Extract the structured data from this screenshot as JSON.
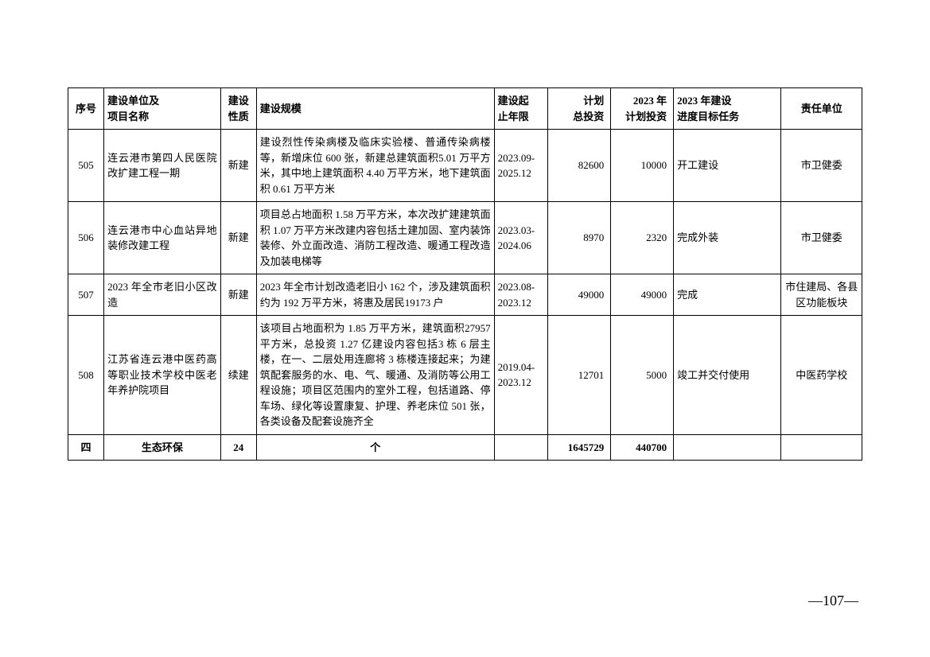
{
  "headers": {
    "seq": "序号",
    "unit": "建设单位及\n项目名称",
    "nature": "建设\n性质",
    "scale": "建设规模",
    "period": "建设起\n止年限",
    "invest": "计划\n总投资",
    "planinvest": "2023 年\n计划投资",
    "progress": "2023 年建设\n进度目标任务",
    "resp": "责任单位"
  },
  "rows": [
    {
      "seq": "505",
      "unit": "连云港市第四人民医院改扩建工程一期",
      "nature": "新建",
      "scale": "建设烈性传染病楼及临床实验楼、普通传染病楼等，新增床位 600 张，新建总建筑面积5.01 万平方米，其中地上建筑面积 4.40 万平方米，地下建筑面积 0.61 万平方米",
      "period": "2023.09-2025.12",
      "invest": "82600",
      "planinvest": "10000",
      "progress": "开工建设",
      "resp": "市卫健委"
    },
    {
      "seq": "506",
      "unit": "连云港市中心血站异地装修改建工程",
      "nature": "新建",
      "scale": "项目总占地面积 1.58 万平方米，本次改扩建建筑面积 1.07 万平方米改建内容包括土建加固、室内装饰装修、外立面改造、消防工程改造、暖通工程改造及加装电梯等",
      "period": "2023.03-2024.06",
      "invest": "8970",
      "planinvest": "2320",
      "progress": "完成外装",
      "resp": "市卫健委"
    },
    {
      "seq": "507",
      "unit": "2023 年全市老旧小区改造",
      "nature": "新建",
      "scale": "2023 年全市计划改造老旧小 162 个，涉及建筑面积约为 192 万平方米，将惠及居民19173 户",
      "period": "2023.08-2023.12",
      "invest": "49000",
      "planinvest": "49000",
      "progress": "完成",
      "resp": "市住建局、各县区功能板块"
    },
    {
      "seq": "508",
      "unit": "江苏省连云港中医药高等职业技术学校中医老年养护院项目",
      "nature": "续建",
      "scale": "该项目占地面积为 1.85 万平方米，建筑面积27957 平方米，总投资 1.27 亿建设内容包括3 栋 6 层主楼，在一、二层处用连廊将 3 栋楼连接起来；为建筑配套服务的水、电、气、暖通、及消防等公用工程设施；项目区范围内的室外工程，包括道路、停车场、绿化等设置康复、护理、养老床位 501 张，各类设备及配套设施齐全",
      "period": "2019.04-2023.12",
      "invest": "12701",
      "planinvest": "5000",
      "progress": "竣工并交付使用",
      "resp": "中医药学校"
    }
  ],
  "summary": {
    "seq": "四",
    "unit": "生态环保",
    "nature": "24",
    "scale": "个",
    "period": "",
    "invest": "1645729",
    "planinvest": "440700",
    "progress": "",
    "resp": ""
  },
  "pageNumber": "—107—"
}
